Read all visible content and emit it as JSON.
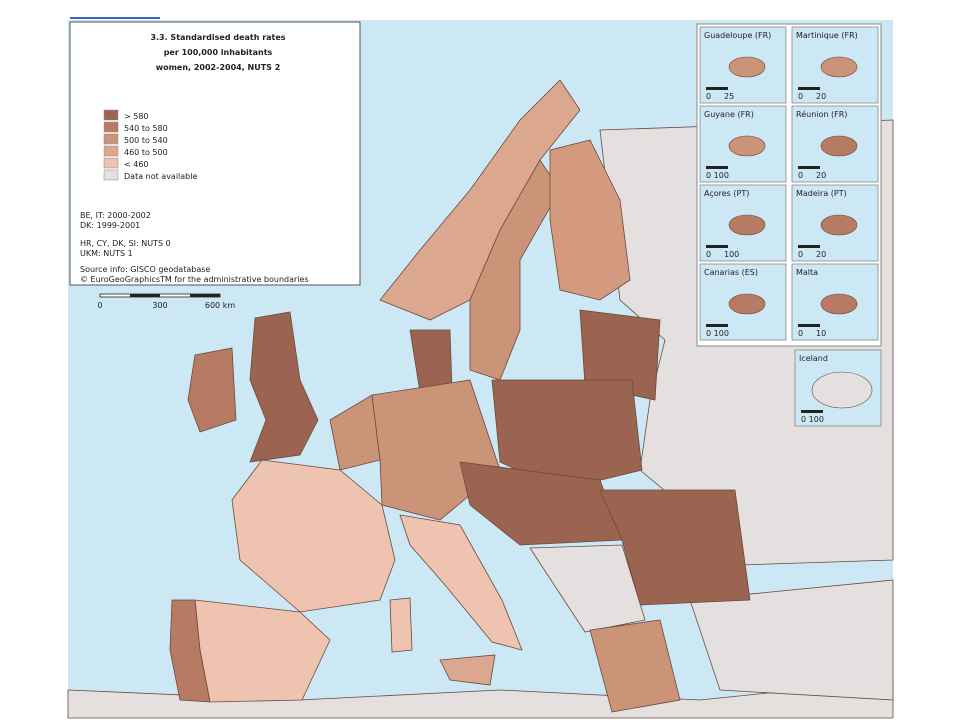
{
  "title": [
    "3.3. Standardised death rates",
    "per 100,000 inhabitants",
    "women, 2002-2004, NUTS 2"
  ],
  "legend": [
    {
      "label": "> 580",
      "color": "#9a6451"
    },
    {
      "label": "540 to 580",
      "color": "#b77a62"
    },
    {
      "label": "500 to 540",
      "color": "#cb9378"
    },
    {
      "label": "460 to 500",
      "color": "#dba78f"
    },
    {
      "label": "< 460",
      "color": "#eec3b0"
    },
    {
      "label": "Data not available",
      "color": "#e4e0e0"
    }
  ],
  "notes": [
    "BE, IT: 2000-2002",
    "DK: 1999-2001",
    "HR, CY, DK, SI: NUTS 0",
    "UKM: NUTS 1"
  ],
  "source": [
    "Source info: GISCO geodatabase",
    "© EuroGeoGraphicsTM for the administrative boundaries"
  ],
  "scale_bar": [
    "0",
    "300",
    "600 km"
  ],
  "insets": [
    {
      "name": "Guadeloupe (FR)",
      "scale": [
        "0",
        "25"
      ]
    },
    {
      "name": "Martinique (FR)",
      "scale": [
        "0",
        "20"
      ]
    },
    {
      "name": "Guyane (FR)",
      "scale": [
        "0 100"
      ]
    },
    {
      "name": "Réunion (FR)",
      "scale": [
        "0",
        "20"
      ]
    },
    {
      "name": "Açores (PT)",
      "scale": [
        "0",
        "100"
      ]
    },
    {
      "name": "Madeira (PT)",
      "scale": [
        "0",
        "20"
      ]
    },
    {
      "name": "Canarias (ES)",
      "scale": [
        "0 100"
      ]
    },
    {
      "name": "Malta",
      "scale": [
        "0",
        "10"
      ]
    },
    {
      "name": "Iceland",
      "scale": [
        "0 100"
      ]
    }
  ]
}
